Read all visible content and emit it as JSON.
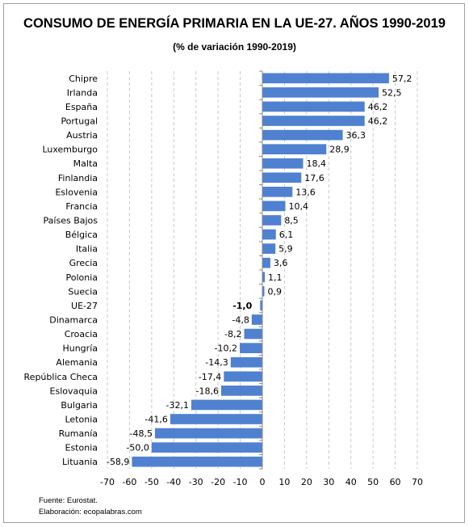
{
  "header": {
    "title": "CONSUMO DE ENERGÍA PRIMARIA EN LA UE-27. AÑOS 1990-2019",
    "subtitle": "(% de variación 1990-2019)"
  },
  "footer": {
    "source": "Fuente: Eurostat.",
    "credit": "Elaboración: ecopalabras.com"
  },
  "chart_data": {
    "type": "bar",
    "orientation": "horizontal",
    "title": "CONSUMO DE ENERGÍA PRIMARIA EN LA UE-27. AÑOS 1990-2019",
    "subtitle": "(% de variación 1990-2019)",
    "categories": [
      "Chipre",
      "Irlanda",
      "España",
      "Portugal",
      "Austria",
      "Luxemburgo",
      "Malta",
      "Finlandia",
      "Eslovenia",
      "Francia",
      "Países Bajos",
      "Bélgica",
      "Italia",
      "Grecia",
      "Polonia",
      "Suecia",
      "UE-27",
      "Dinamarca",
      "Croacia",
      "Hungría",
      "Alemania",
      "República Checa",
      "Eslovaquia",
      "Bulgaria",
      "Letonia",
      "Rumanía",
      "Estonia",
      "Lituania"
    ],
    "values": [
      57.2,
      52.5,
      46.2,
      46.2,
      36.3,
      28.9,
      18.4,
      17.6,
      13.6,
      10.4,
      8.5,
      6.1,
      5.9,
      3.6,
      1.1,
      0.9,
      -1.0,
      -4.8,
      -8.2,
      -10.2,
      -14.3,
      -17.4,
      -18.6,
      -32.1,
      -41.6,
      -48.5,
      -50.0,
      -58.9
    ],
    "value_labels": [
      "57,2",
      "52,5",
      "46,2",
      "46,2",
      "36,3",
      "28,9",
      "18,4",
      "17,6",
      "13,6",
      "10,4",
      "8,5",
      "6,1",
      "5,9",
      "3,6",
      "1,1",
      "0,9",
      "-1,0",
      "-4,8",
      "-8,2",
      "-10,2",
      "-14,3",
      "-17,4",
      "-18,6",
      "-32,1",
      "-41,6",
      "-48,5",
      "-50,0",
      "-58,9"
    ],
    "highlight": "UE-27",
    "xlim": [
      -70,
      70
    ],
    "xticks": [
      -70,
      -60,
      -50,
      -40,
      -30,
      -20,
      -10,
      0,
      10,
      20,
      30,
      40,
      50,
      60,
      70
    ],
    "xlabel": "",
    "ylabel": "",
    "grid": "vertical dashed",
    "legend": "none",
    "bar_color": "#4f81d0",
    "grid_color": "#c8c8c8"
  }
}
